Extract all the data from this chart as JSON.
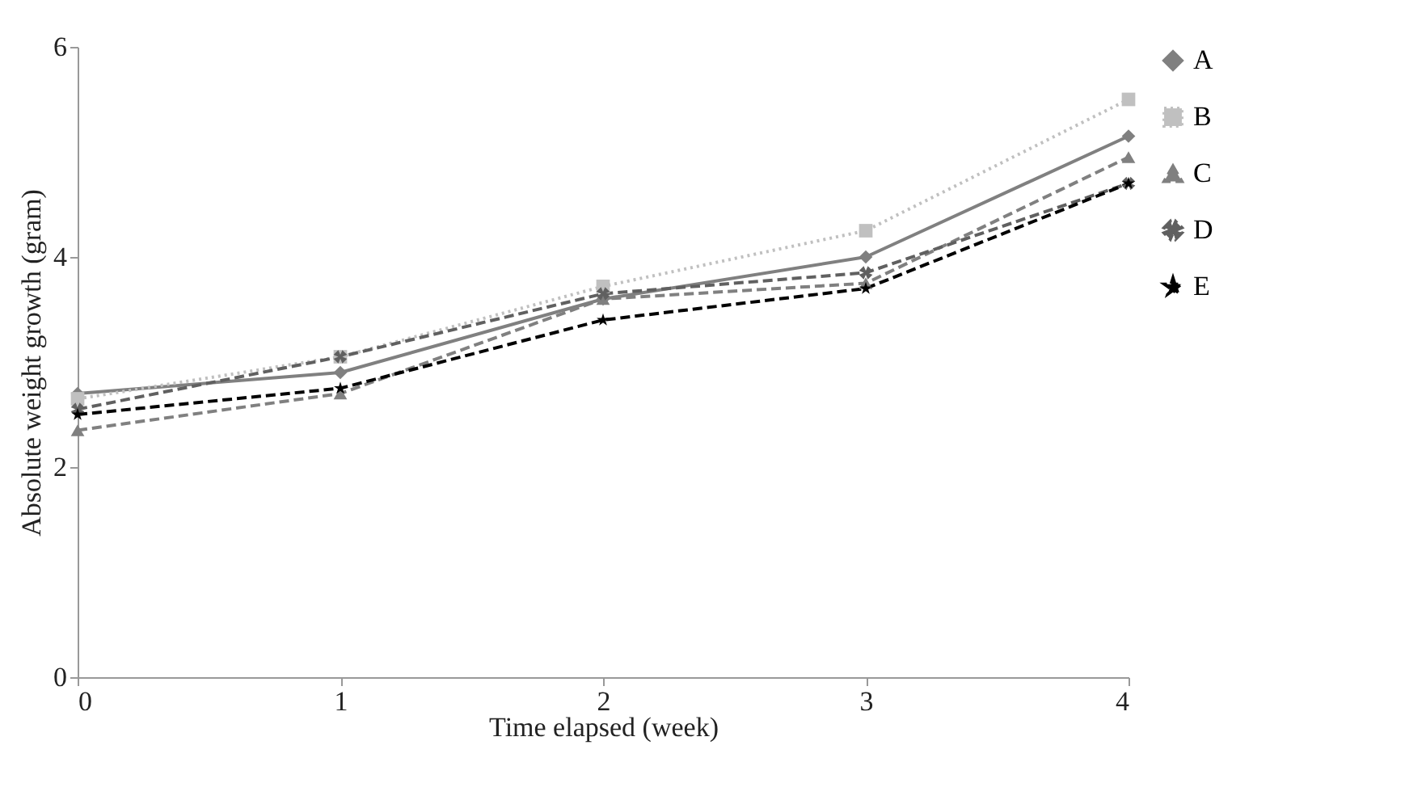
{
  "chart_data": {
    "type": "line",
    "xlabel": "Time elapsed (week)",
    "ylabel": "Absolute weight growth (gram)",
    "x": [
      0,
      1,
      2,
      3,
      4
    ],
    "xlim": [
      0,
      4
    ],
    "xticks": [
      0,
      1,
      2,
      3,
      4
    ],
    "ylim": [
      0,
      6
    ],
    "yticks": [
      0,
      2,
      4,
      6
    ],
    "grid": false,
    "legend": "right",
    "series": [
      {
        "name": "A",
        "color": "#808080",
        "marker": "diamond",
        "line_style": "solid",
        "values": [
          2.7,
          2.9,
          3.6,
          4.0,
          5.15
        ]
      },
      {
        "name": "B",
        "color": "#c0c0c0",
        "marker": "square",
        "line_style": "dotted",
        "values": [
          2.65,
          3.05,
          3.72,
          4.25,
          5.5
        ]
      },
      {
        "name": "C",
        "color": "#808080",
        "marker": "triangle",
        "line_style": "dashed",
        "values": [
          2.35,
          2.7,
          3.6,
          3.75,
          4.95
        ]
      },
      {
        "name": "D",
        "color": "#606060",
        "marker": "cross",
        "line_style": "dashed",
        "values": [
          2.55,
          3.05,
          3.65,
          3.85,
          4.7
        ]
      },
      {
        "name": "E",
        "color": "#000000",
        "marker": "star",
        "line_style": "dashed",
        "values": [
          2.5,
          2.75,
          3.4,
          3.7,
          4.7
        ]
      }
    ]
  }
}
